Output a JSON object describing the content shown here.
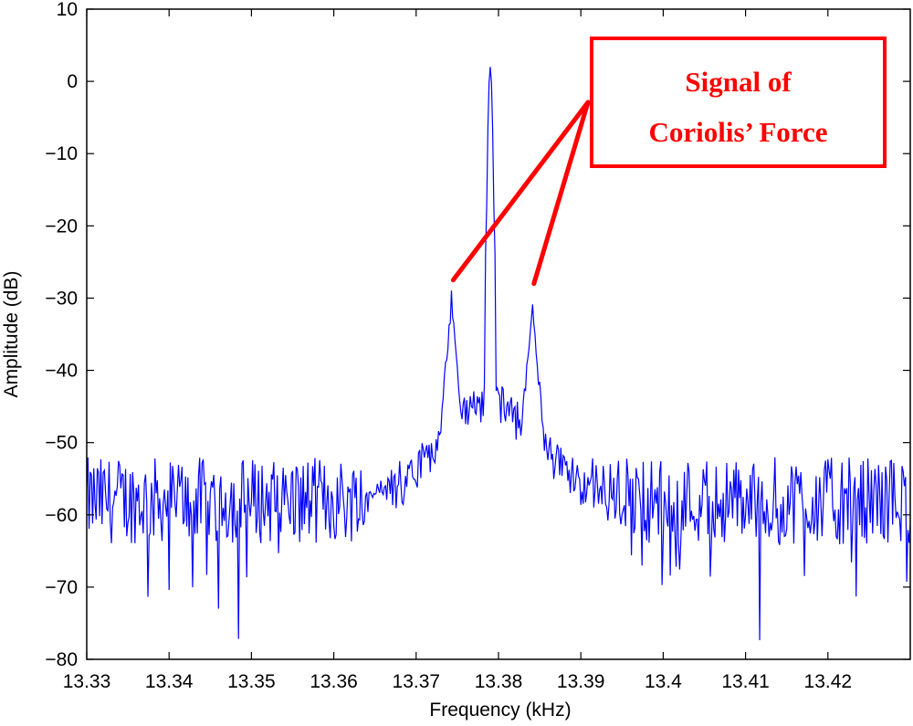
{
  "chart_data": {
    "type": "line",
    "title": "",
    "xlabel": "Frequency (kHz)",
    "ylabel": "Amplitude (dB)",
    "xlim": [
      13.33,
      13.43
    ],
    "ylim": [
      -80,
      10
    ],
    "xticks": [
      13.33,
      13.34,
      13.35,
      13.36,
      13.37,
      13.38,
      13.39,
      13.4,
      13.41,
      13.42
    ],
    "xtick_labels": [
      "13.33",
      "13.34",
      "13.35",
      "13.36",
      "13.37",
      "13.38",
      "13.39",
      "13.4",
      "13.41",
      "13.42"
    ],
    "yticks": [
      10,
      0,
      -10,
      -20,
      -30,
      -40,
      -50,
      -60,
      -70,
      -80
    ],
    "ytick_labels": [
      "10",
      "0",
      "−10",
      "−20",
      "−30",
      "−40",
      "−50",
      "−60",
      "−70",
      "−80"
    ],
    "grid": false,
    "line_color": "#0000ff",
    "noise_floor_db": -58,
    "peaks": [
      {
        "x": 13.379,
        "y": 2
      },
      {
        "x": 13.3743,
        "y": -30
      },
      {
        "x": 13.3841,
        "y": -30
      }
    ],
    "annotation": {
      "lines": [
        "Signal of",
        "Coriolis’ Force"
      ],
      "color": "#ff0000",
      "points_to": [
        {
          "x": 13.3745,
          "y": -27.5
        },
        {
          "x": 13.3843,
          "y": -28
        }
      ]
    }
  }
}
